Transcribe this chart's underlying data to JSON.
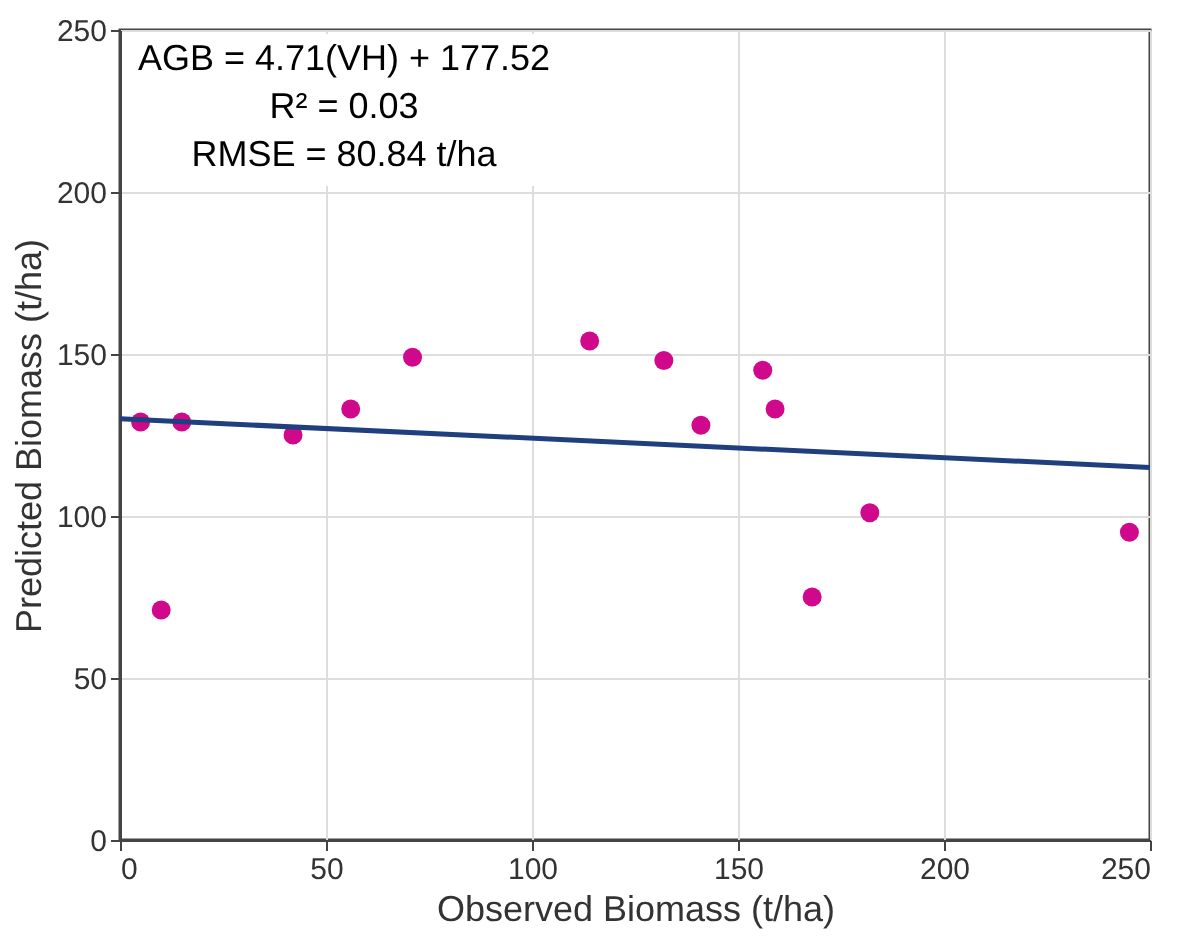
{
  "chart_data": {
    "type": "scatter",
    "xlabel": "Observed Biomass (t/ha)",
    "ylabel": "Predicted Biomass (t/ha)",
    "series": [
      {
        "type": "scatter",
        "marker": "circle",
        "color": "#d0088c",
        "x": [
          5,
          10,
          15,
          42,
          56,
          71,
          114,
          132,
          141,
          156,
          159,
          168,
          182,
          245
        ],
        "values": [
          129,
          71,
          129,
          125,
          133,
          149,
          154,
          148,
          128,
          145,
          133,
          75,
          101,
          95
        ]
      },
      {
        "type": "line",
        "marker": "none",
        "color": "#1f3f7f",
        "x": [
          0,
          250
        ],
        "values": [
          130,
          115
        ]
      }
    ],
    "annotations": [
      "AGB = 4.71(VH) + 177.52",
      "R² = 0.03",
      "RMSE = 80.84 t/ha"
    ],
    "xlim": [
      0,
      250
    ],
    "xticks": [
      0,
      50,
      100,
      150,
      200,
      250
    ],
    "ylim": [
      0,
      250
    ],
    "yticks": [
      0,
      50,
      100,
      150,
      200,
      250
    ],
    "grid": true,
    "line_style": "solid"
  }
}
